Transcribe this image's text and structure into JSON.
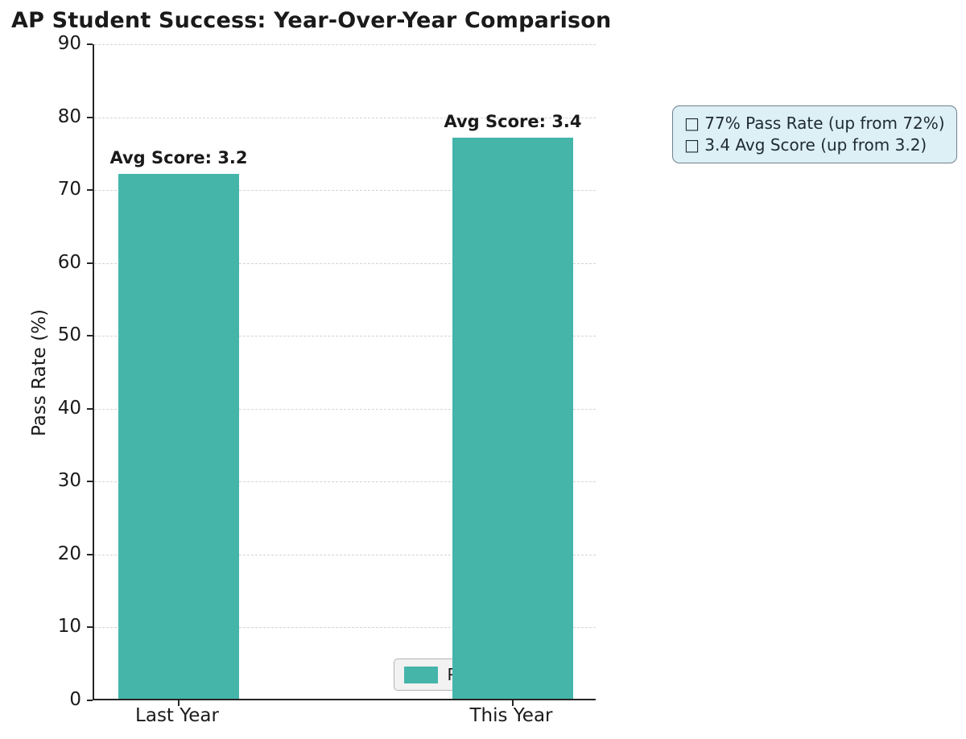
{
  "title": "AP Student Success: Year-Over-Year Comparison",
  "chart_data": {
    "type": "bar",
    "title": "AP Student Success: Year-Over-Year Comparison",
    "categories": [
      "Last Year",
      "This Year"
    ],
    "series": [
      {
        "name": "Pass Rate (%)",
        "values": [
          72,
          77
        ]
      }
    ],
    "xlabel": "",
    "ylabel": "Pass Rate (%)",
    "ylim": [
      0,
      90
    ],
    "yticks": [
      0,
      10,
      20,
      30,
      40,
      50,
      60,
      70,
      80,
      90
    ],
    "grid": "horizontal dashed",
    "legend_position": "lower right inside plot",
    "bar_color": "#45b5aa",
    "bar_centers_fraction": [
      0.168,
      0.832
    ],
    "annotations": [
      {
        "text": "Avg Score: 3.2",
        "category": "Last Year"
      },
      {
        "text": "Avg Score: 3.4",
        "category": "This Year"
      }
    ]
  },
  "legend": {
    "label": "Pass Rate (%)",
    "swatch_color": "#45b5aa"
  },
  "info_box": {
    "lines": [
      "□ 77% Pass Rate (up from 72%)",
      "□ 3.4 Avg Score (up from 3.2)"
    ],
    "background_color": "#ddf0f5",
    "border_color": "#708090"
  }
}
